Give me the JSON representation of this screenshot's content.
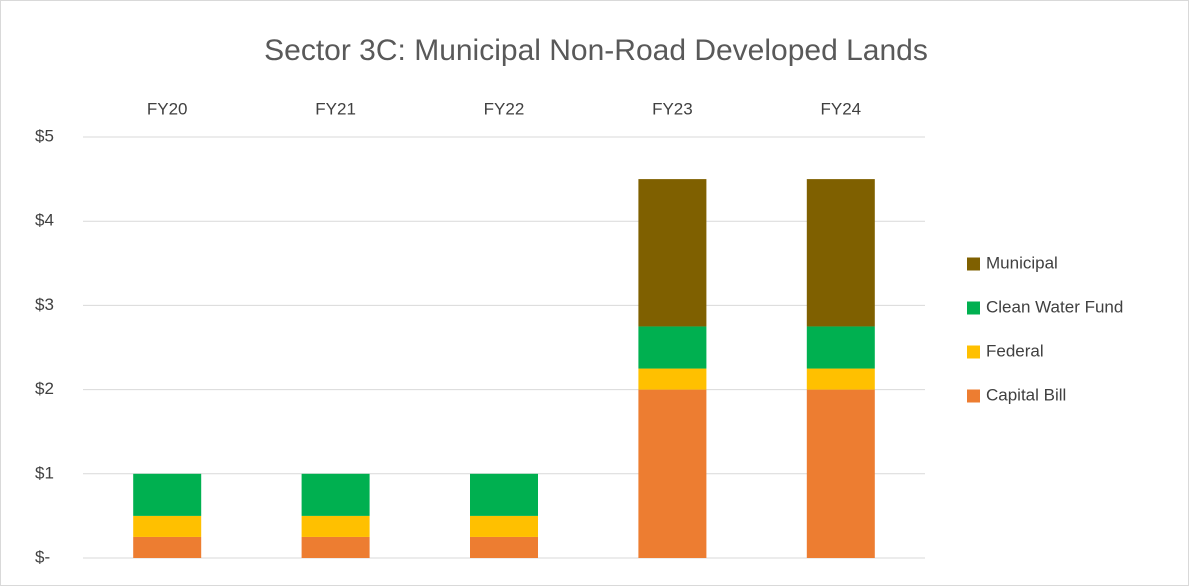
{
  "chart_data": {
    "type": "stacked_bar",
    "title": "Sector 3C: Municipal Non-Road Developed Lands",
    "categories": [
      "FY20",
      "FY21",
      "FY22",
      "FY23",
      "FY24"
    ],
    "series": [
      {
        "name": "Capital Bill",
        "color": "#ED7D31",
        "values": [
          0.25,
          0.25,
          0.25,
          2,
          2
        ]
      },
      {
        "name": "Federal",
        "color": "#FFC000",
        "values": [
          0.25,
          0.25,
          0.25,
          0.25,
          0.25
        ]
      },
      {
        "name": "Clean Water Fund",
        "color": "#00B050",
        "values": [
          0.5,
          0.5,
          0.5,
          0.5,
          0.5
        ]
      },
      {
        "name": "Municipal",
        "color": "#7F6000",
        "values": [
          0,
          0,
          0,
          1.75,
          1.75
        ]
      }
    ],
    "ylim": [
      0,
      5
    ],
    "yticks": [
      {
        "value": 0,
        "label": "$-"
      },
      {
        "value": 1,
        "label": "$1"
      },
      {
        "value": 2,
        "label": "$2"
      },
      {
        "value": 3,
        "label": "$3"
      },
      {
        "value": 4,
        "label": "$4"
      },
      {
        "value": 5,
        "label": "$5"
      }
    ],
    "grid": true,
    "legend": "right"
  }
}
